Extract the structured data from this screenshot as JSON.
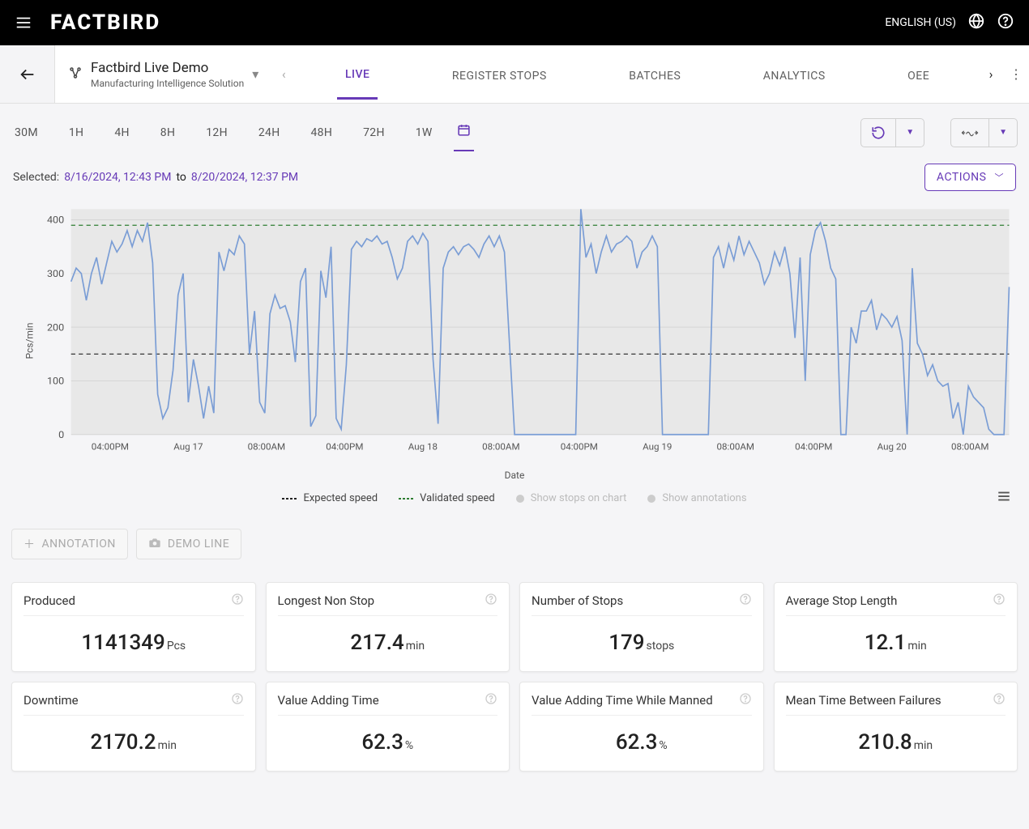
{
  "topbar": {
    "brand": "FACTBIRD",
    "language": "ENGLISH (US)"
  },
  "subheader": {
    "device_title": "Factbird Live Demo",
    "device_subtitle": "Manufacturing Intelligence Solution",
    "tabs": [
      "LIVE",
      "REGISTER STOPS",
      "BATCHES",
      "ANALYTICS",
      "OEE"
    ],
    "active_tab_index": 0
  },
  "range_bar": {
    "options": [
      "30M",
      "1H",
      "4H",
      "8H",
      "12H",
      "24H",
      "48H",
      "72H",
      "1W"
    ],
    "custom_active": true
  },
  "selected": {
    "label": "Selected:",
    "from": "8/16/2024, 12:43 PM",
    "to_word": "to",
    "to": "8/20/2024, 12:37 PM",
    "actions_label": "ACTIONS"
  },
  "chart": {
    "y_label": "Pcs/min",
    "x_label": "Date",
    "background_color": "#e8e8e8",
    "grid_color": "#d6d6d6",
    "line_color": "#7a9dd5",
    "expected_line_color": "#222222",
    "validated_line_color": "#2e7d32",
    "expected_speed": 150,
    "validated_speed": 390,
    "ylim": [
      0,
      420
    ],
    "yticks": [
      0,
      100,
      200,
      300,
      400
    ],
    "xticks": [
      "04:00PM",
      "Aug 17",
      "08:00AM",
      "04:00PM",
      "Aug 18",
      "08:00AM",
      "04:00PM",
      "Aug 19",
      "08:00AM",
      "04:00PM",
      "Aug 20",
      "08:00AM"
    ],
    "values": [
      285,
      310,
      300,
      250,
      300,
      330,
      280,
      320,
      360,
      340,
      355,
      380,
      350,
      380,
      360,
      395,
      320,
      75,
      30,
      50,
      120,
      260,
      300,
      60,
      140,
      90,
      30,
      90,
      40,
      340,
      305,
      345,
      335,
      370,
      355,
      150,
      230,
      60,
      40,
      225,
      260,
      235,
      240,
      210,
      135,
      285,
      310,
      15,
      35,
      305,
      255,
      350,
      30,
      10,
      130,
      345,
      360,
      350,
      365,
      360,
      370,
      355,
      360,
      330,
      290,
      310,
      360,
      370,
      355,
      375,
      360,
      140,
      20,
      310,
      340,
      350,
      335,
      350,
      355,
      345,
      330,
      355,
      370,
      350,
      370,
      340,
      170,
      0,
      0,
      0,
      0,
      0,
      0,
      0,
      0,
      0,
      0,
      0,
      0,
      0,
      420,
      330,
      355,
      300,
      340,
      370,
      340,
      355,
      360,
      370,
      360,
      310,
      340,
      350,
      370,
      350,
      0,
      0,
      0,
      0,
      0,
      0,
      0,
      0,
      0,
      0,
      330,
      350,
      310,
      355,
      325,
      370,
      335,
      360,
      340,
      320,
      280,
      300,
      340,
      315,
      350,
      300,
      180,
      330,
      100,
      335,
      380,
      395,
      360,
      310,
      290,
      0,
      0,
      200,
      170,
      230,
      230,
      250,
      195,
      225,
      215,
      200,
      220,
      175,
      0,
      310,
      170,
      150,
      110,
      130,
      100,
      90,
      95,
      30,
      60,
      0,
      90,
      70,
      60,
      50,
      10,
      0,
      0,
      0,
      275
    ]
  },
  "legend": {
    "items": [
      {
        "label": "Expected speed",
        "color": "#222222",
        "dashed": true
      },
      {
        "label": "Validated speed",
        "color": "#2e7d32",
        "dashed": true
      },
      {
        "label": "Show stops on chart",
        "disabled": true
      },
      {
        "label": "Show annotations",
        "disabled": true
      }
    ]
  },
  "below_buttons": {
    "annotation": "ANNOTATION",
    "demo_line": "DEMO LINE"
  },
  "kpis": [
    {
      "title": "Produced",
      "value": "1141349",
      "unit": "Pcs"
    },
    {
      "title": "Longest Non Stop",
      "value": "217.4",
      "unit": "min"
    },
    {
      "title": "Number of Stops",
      "value": "179",
      "unit": "stops"
    },
    {
      "title": "Average Stop Length",
      "value": "12.1",
      "unit": "min"
    },
    {
      "title": "Downtime",
      "value": "2170.2",
      "unit": "min"
    },
    {
      "title": "Value Adding Time",
      "value": "62.3",
      "unit": "%"
    },
    {
      "title": "Value Adding Time While Manned",
      "value": "62.3",
      "unit": "%"
    },
    {
      "title": "Mean Time Between Failures",
      "value": "210.8",
      "unit": "min"
    }
  ],
  "colors": {
    "accent": "#673ab7"
  }
}
